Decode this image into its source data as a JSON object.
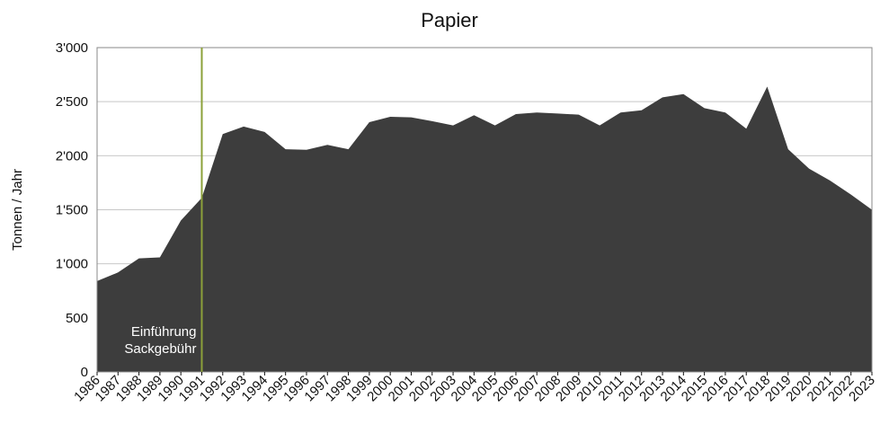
{
  "chart_data": {
    "type": "area",
    "title": "Papier",
    "xlabel": "",
    "ylabel": "Tonnen / Jahr",
    "ylim": [
      0,
      3000
    ],
    "yticks": [
      0,
      500,
      1000,
      1500,
      2000,
      2500,
      3000
    ],
    "ytick_labels": [
      "0",
      "500",
      "1'000",
      "1'500",
      "2'000",
      "2'500",
      "3'000"
    ],
    "grid": true,
    "area_color": "#3d3d3d",
    "marker_color": "#8ca13a",
    "categories": [
      "1986",
      "1987",
      "1988",
      "1989",
      "1990",
      "1991",
      "1992",
      "1993",
      "1994",
      "1995",
      "1996",
      "1997",
      "1998",
      "1999",
      "2000",
      "2001",
      "2002",
      "2003",
      "2004",
      "2005",
      "2006",
      "2007",
      "2008",
      "2009",
      "2010",
      "2011",
      "2012",
      "2013",
      "2014",
      "2015",
      "2016",
      "2017",
      "2018",
      "2019",
      "2020",
      "2021",
      "2022",
      "2023"
    ],
    "values": [
      840,
      920,
      1050,
      1060,
      1400,
      1610,
      2200,
      2270,
      2220,
      2060,
      2055,
      2100,
      2060,
      2310,
      2360,
      2355,
      2320,
      2280,
      2375,
      2280,
      2385,
      2400,
      2390,
      2380,
      2280,
      2400,
      2420,
      2540,
      2570,
      2440,
      2400,
      2250,
      2640,
      2060,
      1880,
      1770,
      1640,
      1500
    ],
    "annotation": {
      "year": "1991",
      "lines": [
        "Einführung",
        "Sackgebühr"
      ]
    }
  }
}
